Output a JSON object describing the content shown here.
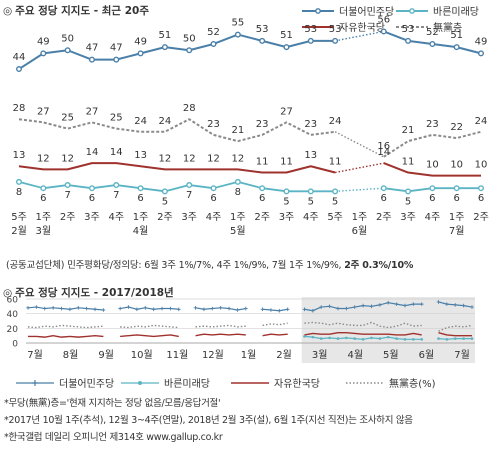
{
  "title_top": "주요 정당 지지도 - 최근 20주",
  "title_bottom": "주요 정당 지지도 - 2017/2018년",
  "colors": {
    "minjoo": "#4a7fa8",
    "bareun": "#5bb4c4",
    "jayu": "#a0322e",
    "none": "#8a8a8a",
    "shade": "#e7e7e7"
  },
  "legend": {
    "minjoo": "더불어민주당",
    "bareun": "바른미래당",
    "jayu": "자유한국당",
    "none": "無黨층",
    "none_pct": "無黨층(%)"
  },
  "minor_parties_note": {
    "text": "(공동교섭단체) 민주평화당/정의당: 6월 3주 1%/7%, 4주 1%/9%, 7월 1주 1%/9%, ",
    "bold": "2주 0.3%/10%"
  },
  "notes": [
    "*무당(無黨)층='현재 지지하는 정당 없음/모름/응답거절'",
    "*2017년 10월 1주(추석), 12월 3~4주(연말), 2018년 2월 3주(설), 6월 1주(지선 직전)는 조사하지 않음",
    "*한국갤럽 데일리 오피니언 제314호 www.gallup.co.kr"
  ],
  "chart_data": [
    {
      "type": "line",
      "title": "주요 정당 지지도 - 최근 20주",
      "categories": [
        [
          "5주",
          "2월"
        ],
        [
          "1주",
          "3월"
        ],
        [
          "2주",
          ""
        ],
        [
          "3주",
          ""
        ],
        [
          "4주",
          ""
        ],
        [
          "1주",
          "4월"
        ],
        [
          "2주",
          ""
        ],
        [
          "3주",
          ""
        ],
        [
          "4주",
          ""
        ],
        [
          "1주",
          "5월"
        ],
        [
          "2주",
          ""
        ],
        [
          "3주",
          ""
        ],
        [
          "4주",
          ""
        ],
        [
          "5주",
          ""
        ],
        [
          "1주",
          "6월"
        ],
        [
          "2주",
          ""
        ],
        [
          "3주",
          ""
        ],
        [
          "4주",
          ""
        ],
        [
          "1주",
          "7월"
        ],
        [
          "2주",
          ""
        ]
      ],
      "series": [
        {
          "name": "더불어민주당",
          "values": [
            44,
            49,
            50,
            47,
            47,
            49,
            51,
            50,
            52,
            55,
            53,
            51,
            53,
            53,
            null,
            56,
            53,
            52,
            51,
            49
          ]
        },
        {
          "name": "無黨층",
          "values": [
            28,
            27,
            25,
            27,
            25,
            24,
            24,
            28,
            23,
            21,
            23,
            27,
            23,
            24,
            null,
            16,
            21,
            23,
            22,
            24
          ]
        },
        {
          "name": "자유한국당",
          "values": [
            13,
            12,
            12,
            14,
            14,
            13,
            12,
            12,
            12,
            12,
            11,
            11,
            13,
            11,
            null,
            14,
            11,
            10,
            10,
            10
          ]
        },
        {
          "name": "바른미래당",
          "values": [
            8,
            6,
            7,
            6,
            7,
            6,
            5,
            7,
            6,
            8,
            6,
            5,
            5,
            5,
            null,
            6,
            5,
            6,
            6,
            6
          ]
        }
      ]
    },
    {
      "type": "line",
      "title": "주요 정당 지지도 - 2017/2018년",
      "y_ticks": [
        0,
        20,
        40,
        60
      ],
      "ylim": [
        0,
        60
      ],
      "x_labels": [
        "7월",
        "8월",
        "9월",
        "10월",
        "11월",
        "12월",
        "1월",
        "2월",
        "3월",
        "4월",
        "5월",
        "6월",
        "7월"
      ],
      "shaded_from": "3월",
      "series": [
        {
          "name": "더불어민주당",
          "values": [
            48,
            49,
            47,
            48,
            47,
            46,
            48,
            47,
            46,
            45,
            null,
            47,
            49,
            46,
            48,
            46,
            47,
            47,
            46,
            null,
            48,
            46,
            47,
            48,
            47,
            45,
            47,
            null,
            46,
            45,
            44,
            46,
            null,
            46,
            44,
            49,
            50,
            47,
            47,
            49,
            51,
            50,
            52,
            55,
            53,
            51,
            53,
            53,
            null,
            56,
            53,
            52,
            51,
            49
          ]
        },
        {
          "name": "無黨층",
          "values": [
            22,
            21,
            23,
            22,
            24,
            23,
            22,
            21,
            22,
            23,
            null,
            22,
            21,
            23,
            22,
            24,
            23,
            22,
            21,
            null,
            22,
            23,
            22,
            23,
            24,
            22,
            23,
            null,
            24,
            26,
            25,
            27,
            null,
            27,
            28,
            27,
            25,
            27,
            25,
            24,
            24,
            28,
            23,
            21,
            23,
            27,
            23,
            24,
            null,
            16,
            21,
            23,
            22,
            24
          ]
        },
        {
          "name": "자유한국당",
          "values": [
            9,
            9,
            8,
            10,
            8,
            9,
            8,
            9,
            10,
            9,
            null,
            9,
            10,
            11,
            10,
            9,
            10,
            11,
            9,
            null,
            10,
            12,
            11,
            12,
            11,
            12,
            11,
            null,
            10,
            12,
            11,
            12,
            null,
            11,
            13,
            12,
            12,
            14,
            14,
            13,
            12,
            12,
            12,
            12,
            11,
            11,
            13,
            11,
            null,
            14,
            11,
            10,
            10,
            10
          ]
        },
        {
          "name": "바른미래당",
          "values": [
            null,
            null,
            null,
            null,
            null,
            null,
            null,
            null,
            null,
            null,
            null,
            null,
            null,
            null,
            null,
            null,
            null,
            null,
            null,
            null,
            null,
            null,
            null,
            null,
            null,
            null,
            null,
            null,
            null,
            null,
            null,
            null,
            null,
            9,
            8,
            6,
            7,
            6,
            7,
            6,
            5,
            7,
            6,
            8,
            6,
            5,
            5,
            5,
            null,
            6,
            5,
            6,
            6,
            6
          ]
        }
      ]
    }
  ]
}
